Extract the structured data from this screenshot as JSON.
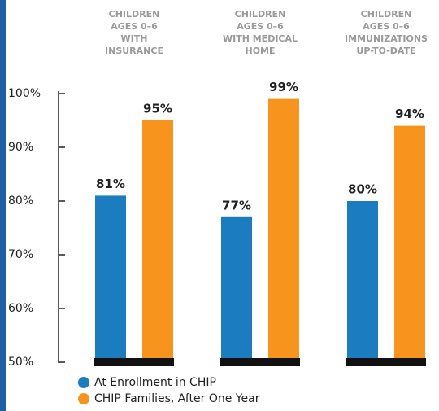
{
  "chart_data": {
    "type": "bar",
    "categories": [
      "CHILDREN\nAGES 0–6\nWITH\nINSURANCE",
      "CHILDREN\nAGES 0–6\nWITH MEDICAL\nHOME",
      "CHILDREN\nAGES 0–6\nIMMUNIZATIONS\nUP-TO-DATE"
    ],
    "series": [
      {
        "name": "At Enrollment in CHIP",
        "color": "#1b7dbf",
        "values": [
          81,
          77,
          80
        ],
        "value_labels": [
          "81%",
          "77%",
          "80%"
        ]
      },
      {
        "name": "CHIP Families, After One Year",
        "color": "#f7941d",
        "values": [
          95,
          99,
          94
        ],
        "value_labels": [
          "95%",
          "99%",
          "94%"
        ]
      }
    ],
    "ylim": [
      50,
      100
    ],
    "yticks": [
      {
        "value": 50,
        "label": "50%"
      },
      {
        "value": 60,
        "label": "60%"
      },
      {
        "value": 70,
        "label": "70%"
      },
      {
        "value": 80,
        "label": "80%"
      },
      {
        "value": 90,
        "label": "90%"
      },
      {
        "value": 100,
        "label": "100%"
      }
    ],
    "legend": "bottom-left"
  }
}
